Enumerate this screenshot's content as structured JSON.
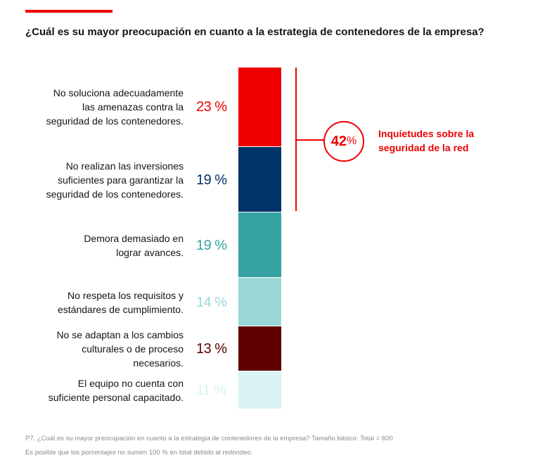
{
  "title": "¿Cuál es su mayor preocupación en cuanto a la estrategia de contenedores de la empresa?",
  "colors": {
    "accent": "#ee0000",
    "text": "#151515",
    "footnote": "#8a8a8a"
  },
  "chart_data": {
    "type": "bar",
    "orientation": "stacked-vertical",
    "title": "¿Cuál es su mayor preocupación en cuanto a la estrategia de contenedores de la empresa?",
    "unit": "%",
    "categories": [
      "No soluciona adecuadamente\nlas amenazas contra la\nseguridad de los contenedores.",
      "No realizan las inversiones\nsuficientes para garantizar la\nseguridad de los contenedores.",
      "Demora demasiado en\nlograr avances.",
      "No respeta los requisitos y\nestándares de cumplimiento.",
      "No se adaptan a los cambios\nculturales o de proceso\nnecesarios.",
      "El equipo no cuenta con\nsuficiente personal capacitado."
    ],
    "values": [
      23,
      19,
      19,
      14,
      13,
      11
    ],
    "value_labels": [
      "23 %",
      "19 %",
      "19 %",
      "14 %",
      "13 %",
      "11 %"
    ],
    "colors": [
      "#ee0000",
      "#003366",
      "#37a3a3",
      "#9ad8d8",
      "#5f0000",
      "#daf2f2"
    ],
    "annotation": {
      "value": "42",
      "suffix": "%",
      "label": "Inquietudes sobre la\nseguridad de la red",
      "spans_categories": [
        0,
        1
      ]
    }
  },
  "footnotes": [
    "P7. ¿Cuál es su mayor preocupación en cuanto a la estrategia de contenedores de la empresa? Tamaño básico: Total = 600",
    "Es posible que los porcentajes no sumen 100 % en total debido al redondeo."
  ]
}
